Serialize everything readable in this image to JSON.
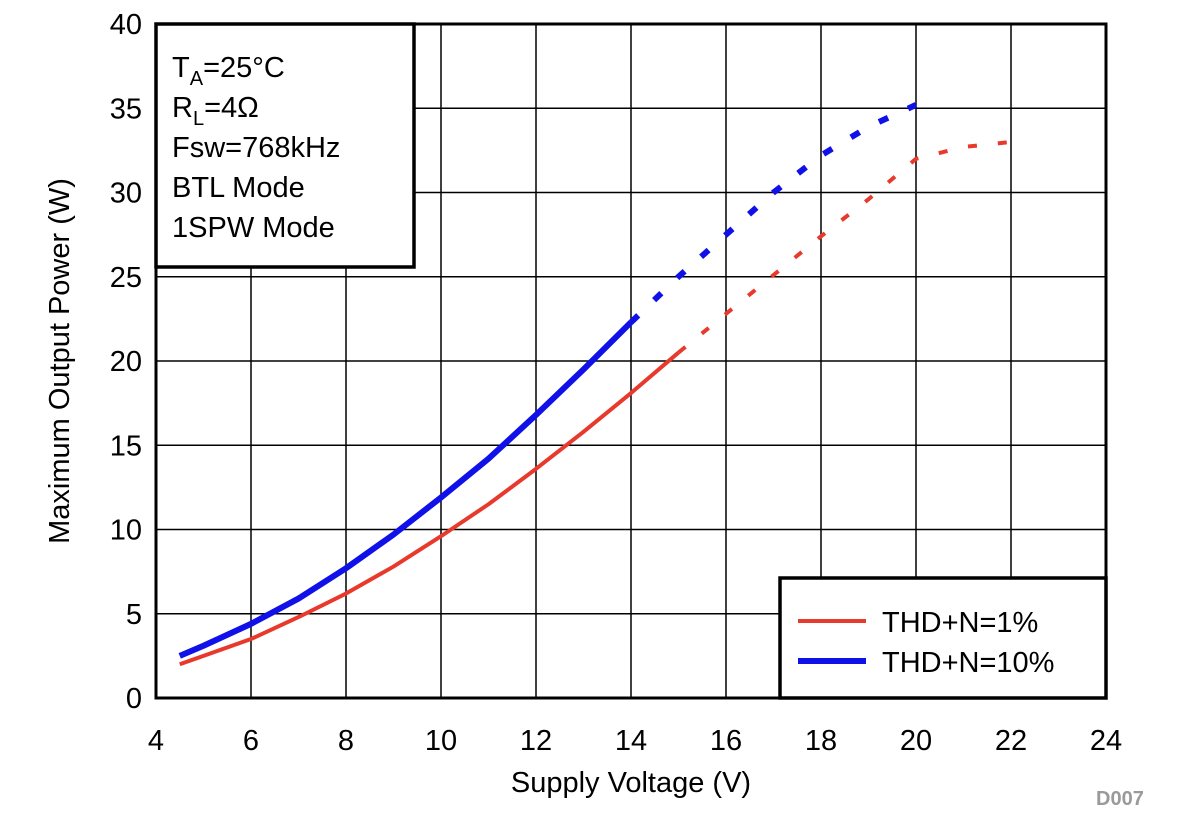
{
  "chart_data": {
    "type": "line",
    "xlabel": "Supply Voltage (V)",
    "ylabel": "Maximum Output Power (W)",
    "xlim": [
      4,
      24
    ],
    "ylim": [
      0,
      40
    ],
    "x_ticks": [
      "4",
      "6",
      "8",
      "10",
      "12",
      "14",
      "16",
      "18",
      "20",
      "22",
      "24"
    ],
    "y_ticks": [
      "0",
      "5",
      "10",
      "15",
      "20",
      "25",
      "30",
      "35",
      "40"
    ],
    "grid": true,
    "conditions": {
      "ta_main": "T",
      "ta_sub": "A",
      "ta_value": "=25°C",
      "rl_main": "R",
      "rl_sub": "L",
      "rl_value": "=4Ω",
      "fsw": "Fsw=768kHz",
      "btl": "BTL Mode",
      "mode": "1SPW Mode"
    },
    "legend_position": "bottom-right",
    "series": [
      {
        "name": "THD+N=1%",
        "color": "#e8392d",
        "solid": [
          [
            4.5,
            2.0
          ],
          [
            5,
            2.5
          ],
          [
            6,
            3.5
          ],
          [
            7,
            4.8
          ],
          [
            8,
            6.2
          ],
          [
            9,
            7.8
          ],
          [
            10,
            9.6
          ],
          [
            11,
            11.5
          ],
          [
            12,
            13.6
          ],
          [
            13,
            15.8
          ],
          [
            14,
            18.1
          ],
          [
            15,
            20.5
          ]
        ],
        "dotted": [
          [
            15,
            20.5
          ],
          [
            16,
            22.8
          ],
          [
            17,
            25.1
          ],
          [
            18,
            27.4
          ],
          [
            19,
            29.6
          ],
          [
            20,
            32.0
          ],
          [
            21,
            32.7
          ],
          [
            22,
            33.0
          ]
        ]
      },
      {
        "name": "THD+N=10%",
        "color": "#1010e8",
        "solid": [
          [
            4.5,
            2.5
          ],
          [
            5,
            3.1
          ],
          [
            6,
            4.4
          ],
          [
            7,
            5.9
          ],
          [
            8,
            7.7
          ],
          [
            9,
            9.7
          ],
          [
            10,
            11.9
          ],
          [
            11,
            14.2
          ],
          [
            12,
            16.8
          ],
          [
            13,
            19.5
          ],
          [
            14,
            22.3
          ]
        ],
        "dotted": [
          [
            14,
            22.3
          ],
          [
            15,
            25.0
          ],
          [
            16,
            27.5
          ],
          [
            17,
            30.0
          ],
          [
            18,
            32.2
          ],
          [
            19,
            33.9
          ],
          [
            20,
            35.2
          ]
        ]
      }
    ]
  },
  "watermark": "D007"
}
